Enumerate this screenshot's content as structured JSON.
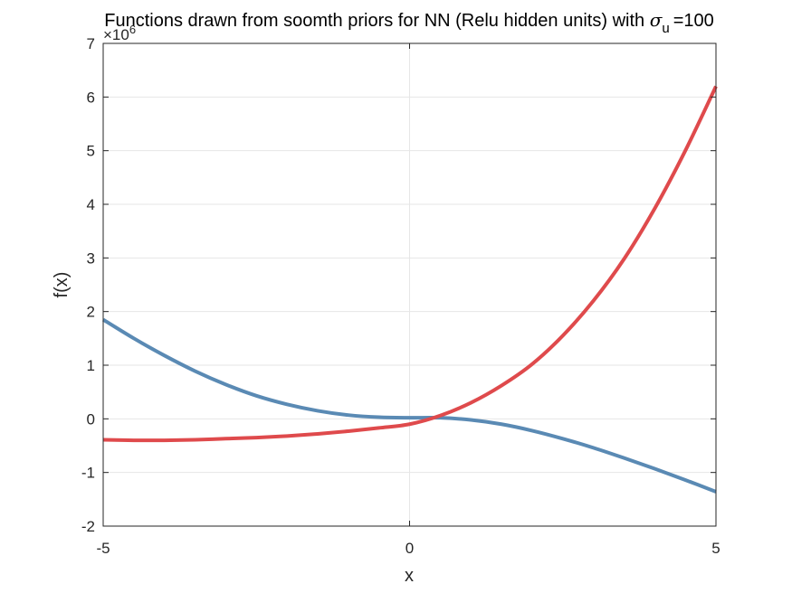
{
  "chart_data": {
    "type": "line",
    "title": "Functions drawn from soomth priors for NN (Relu hidden units) with",
    "title_symbol": "σ",
    "title_subscript": "u",
    "title_suffix": "=100",
    "xlabel": "x",
    "ylabel": "f(x)",
    "y_exponent_base": "×10",
    "y_exponent": "6",
    "xlim": [
      -5,
      5
    ],
    "ylim": [
      -2,
      7
    ],
    "x_ticks": [
      -5,
      0,
      5
    ],
    "x_tick_labels": [
      "-5",
      "0",
      "5"
    ],
    "y_ticks": [
      -2,
      -1,
      0,
      1,
      2,
      3,
      4,
      5,
      6,
      7
    ],
    "y_tick_labels": [
      "-2",
      "-1",
      "0",
      "1",
      "2",
      "3",
      "4",
      "5",
      "6",
      "7"
    ],
    "grid": true,
    "series": [
      {
        "color": "#5a8ab4",
        "x": [
          -5,
          -4.5,
          -4,
          -3.5,
          -3,
          -2.5,
          -2,
          -1.5,
          -1,
          -0.5,
          0,
          0.5,
          1,
          1.5,
          2,
          2.5,
          3,
          3.5,
          4,
          4.5,
          5
        ],
        "values": [
          1.85,
          1.5,
          1.18,
          0.89,
          0.64,
          0.43,
          0.27,
          0.15,
          0.07,
          0.03,
          0.02,
          0.02,
          -0.02,
          -0.1,
          -0.22,
          -0.37,
          -0.54,
          -0.73,
          -0.93,
          -1.14,
          -1.36
        ]
      },
      {
        "color": "#df4a4c",
        "x": [
          -5,
          -4.5,
          -4,
          -3.5,
          -3,
          -2.5,
          -2,
          -1.5,
          -1,
          -0.5,
          0,
          0.5,
          1,
          1.5,
          2,
          2.5,
          3,
          3.5,
          4,
          4.5,
          5
        ],
        "values": [
          -0.39,
          -0.4,
          -0.4,
          -0.39,
          -0.37,
          -0.35,
          -0.32,
          -0.28,
          -0.23,
          -0.17,
          -0.1,
          0.06,
          0.3,
          0.62,
          1.02,
          1.55,
          2.2,
          2.98,
          3.92,
          5.0,
          6.2
        ]
      }
    ]
  }
}
